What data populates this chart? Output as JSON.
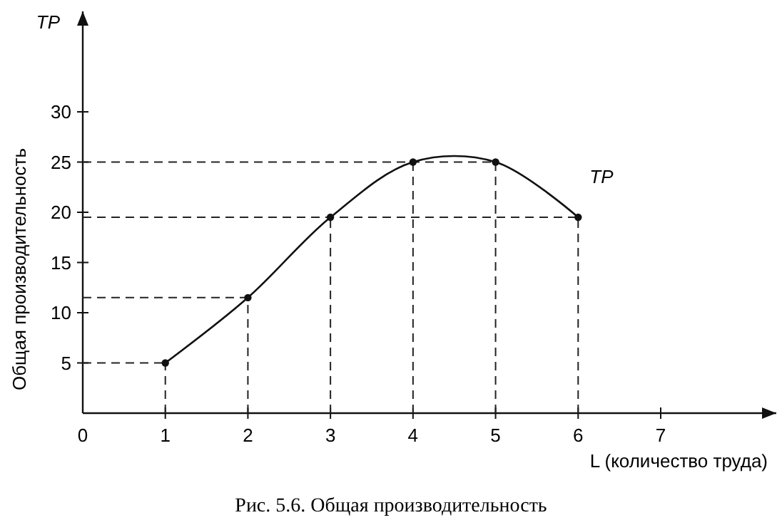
{
  "chart_data": {
    "type": "line",
    "ylabel": "Общая производительность",
    "xlabel": "L (количество труда)",
    "annotations": [
      "TP",
      "Рис. 5.6. Общая производительность"
    ],
    "x": [
      1,
      2,
      3,
      4,
      5,
      6
    ],
    "series": [
      {
        "name": "TP",
        "color": "#111111",
        "values": [
          5,
          11.5,
          19.5,
          25,
          25,
          19.5
        ]
      }
    ],
    "xlim": [
      0,
      8.4
    ],
    "ylim": [
      0,
      40
    ],
    "xticks": [
      {
        "value": 0,
        "label": "0"
      },
      1,
      2,
      3,
      4,
      5,
      6,
      7
    ],
    "yticks": [
      5,
      10,
      15,
      20,
      25,
      30
    ],
    "marker": "circle",
    "line_style": "solid",
    "grid": false,
    "legend": false,
    "ref_lines": [
      {
        "axis": "y",
        "value": 5,
        "line_style": "dashed"
      },
      {
        "axis": "y",
        "value": 11.5,
        "line_style": "dashed"
      },
      {
        "axis": "y",
        "value": 19.5,
        "line_style": "dashed"
      },
      {
        "axis": "y",
        "value": 25,
        "line_style": "dashed"
      },
      {
        "axis": "x",
        "value": 1,
        "line_style": "dashed"
      },
      {
        "axis": "x",
        "value": 2,
        "line_style": "dashed"
      },
      {
        "axis": "x",
        "value": 3,
        "line_style": "dashed"
      },
      {
        "axis": "x",
        "value": 4,
        "line_style": "dashed"
      },
      {
        "axis": "x",
        "value": 5,
        "line_style": "dashed"
      },
      {
        "axis": "x",
        "value": 6,
        "line_style": "dashed"
      }
    ]
  }
}
